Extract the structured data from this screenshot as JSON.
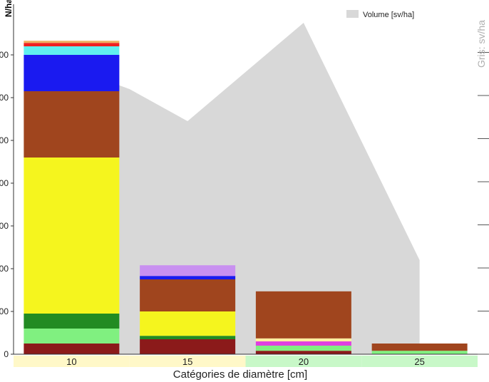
{
  "chart_data": {
    "type": "bar",
    "subtype": "stacked bar with area overlay",
    "xlabel": "Catégories de diamètre [cm]",
    "ylabel": "N/ha",
    "right_axis_label": "Gris: sv/ha",
    "ylim": [
      0,
      740
    ],
    "categories": [
      "10",
      "15",
      "20",
      "25"
    ],
    "category_band_colors": [
      "#fff8c8",
      "#fff8c8",
      "#c8f8c8",
      "#c8f8c8"
    ],
    "series": [
      {
        "color": "#8b1a1a",
        "values": [
          25,
          35,
          8,
          0
        ]
      },
      {
        "color": "#80f080",
        "values": [
          35,
          0,
          12,
          8
        ]
      },
      {
        "color": "#228b22",
        "values": [
          35,
          8,
          0,
          0
        ]
      },
      {
        "color": "#f5f51e",
        "values": [
          365,
          57,
          0,
          0
        ]
      },
      {
        "color": "#e040e0",
        "values": [
          0,
          0,
          10,
          0
        ]
      },
      {
        "color": "#fff0a0",
        "values": [
          0,
          0,
          7,
          0
        ]
      },
      {
        "color": "#a0451e",
        "values": [
          155,
          75,
          110,
          17
        ]
      },
      {
        "color": "#1a1af0",
        "values": [
          85,
          8,
          0,
          0
        ]
      },
      {
        "color": "#c890f0",
        "values": [
          0,
          25,
          0,
          0
        ]
      },
      {
        "color": "#60f0f0",
        "values": [
          20,
          0,
          0,
          0
        ]
      },
      {
        "color": "#f02020",
        "values": [
          8,
          0,
          0,
          0
        ]
      },
      {
        "color": "#f0b060",
        "values": [
          5,
          0,
          0,
          0
        ]
      }
    ],
    "area": {
      "name": "Volume [sv/ha]",
      "color": "#d8d8d8",
      "x": [
        10,
        12.5,
        15,
        20,
        25
      ],
      "values": [
        670,
        620,
        545,
        775,
        220
      ]
    },
    "legend_position": "top-right",
    "grid": false
  }
}
